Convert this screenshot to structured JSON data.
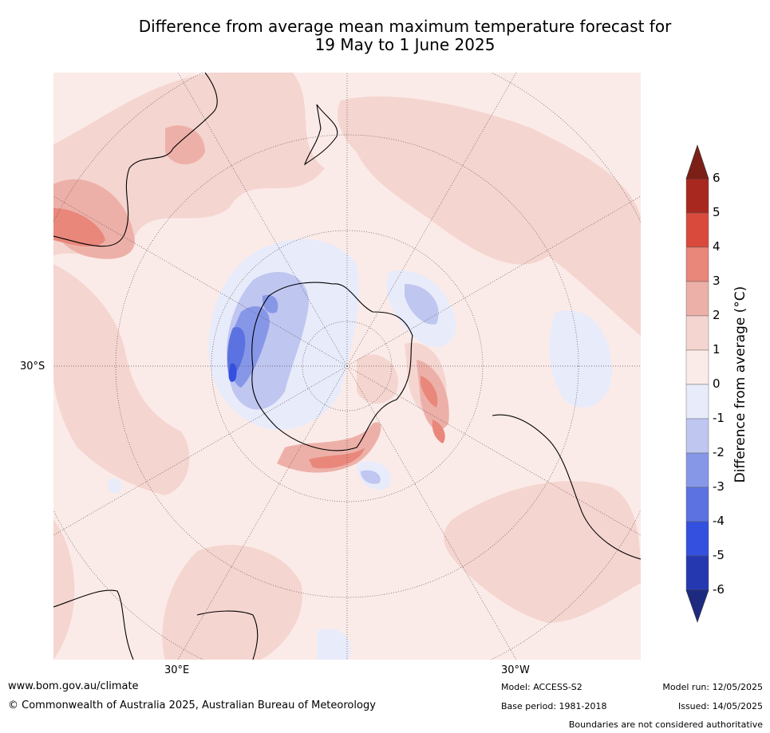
{
  "title_line1": "Difference from average mean maximum temperature forecast for",
  "title_line2": "19 May to 1 June 2025",
  "map_labels": {
    "lat_30s": "30°S",
    "lon_30e": "30°E",
    "lon_30w": "30°W"
  },
  "colorbar": {
    "label": "Difference from average ($^\\circ$C)",
    "label_display": "Difference from average (°C)",
    "ticks": [
      "6",
      "5",
      "4",
      "3",
      "2",
      "1",
      "0",
      "-1",
      "-2",
      "-3",
      "-4",
      "-5",
      "-6"
    ],
    "colors_top_to_bottom": [
      "#a82820",
      "#d94a3d",
      "#e8877a",
      "#edb0a8",
      "#f5d5d0",
      "#fbebe8",
      "#e8ebfa",
      "#bfc6f0",
      "#8797e8",
      "#5c72e0",
      "#3450df",
      "#2638b0"
    ],
    "extend_high_color": "#7c1f16",
    "extend_low_color": "#1d2a80"
  },
  "footer": {
    "url": "www.bom.gov.au/climate",
    "copyright": "© Commonwealth of Australia 2025, Australian Bureau of Meteorology",
    "model": "Model: ACCESS-S2",
    "base_period": "Base period: 1981-2018",
    "model_run": "Model run: 12/05/2025",
    "issued": "Issued: 14/05/2025",
    "disclaimer": "Boundaries are not considered authoritative"
  }
}
